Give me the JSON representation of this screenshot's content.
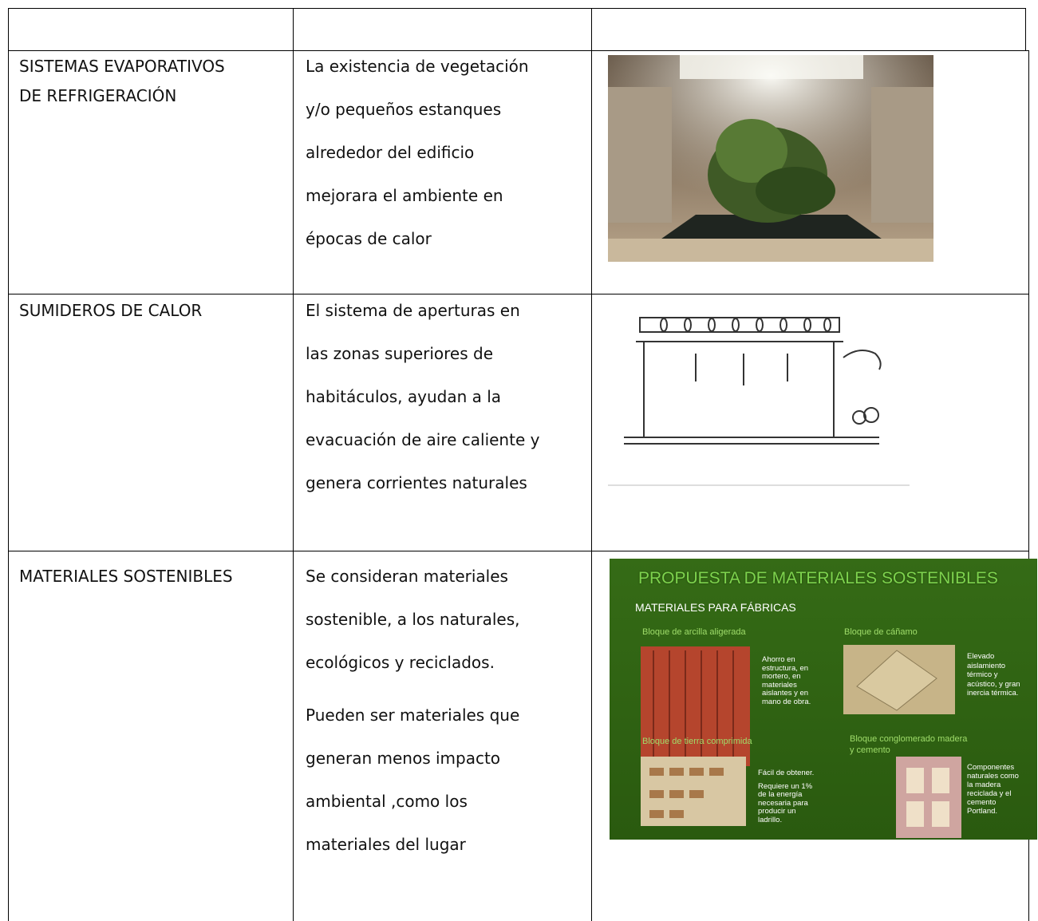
{
  "table": {
    "rows": [
      {
        "term": [
          "SISTEMAS EVAPORATIVOS",
          "DE REFRIGERACIÓN"
        ],
        "description": [
          [
            "La existencia de vegetación",
            "y/o pequeños estanques",
            "alrededor del edificio",
            "mejorara el ambiente en",
            "épocas de calor"
          ]
        ]
      },
      {
        "term": [
          "SUMIDEROS DE CALOR"
        ],
        "description": [
          [
            "El sistema de aperturas en",
            "las zonas superiores de",
            "habitáculos, ayudan a la",
            "evacuación de aire caliente y",
            "genera corrientes naturales"
          ]
        ]
      },
      {
        "term": [
          "MATERIALES SOSTENIBLES"
        ],
        "description": [
          [
            "Se consideran materiales",
            "sostenible, a los naturales,",
            "ecológicos y reciclados."
          ],
          [
            "Pueden ser materiales que",
            "generan menos impacto",
            "ambiental ,como los",
            "materiales del lugar"
          ]
        ]
      }
    ]
  },
  "figure": {
    "title": "PROPUESTA DE MATERIALES SOSTENIBLES",
    "subtitle": "MATERIALES PARA FÁBRICAS",
    "items": [
      {
        "name": [
          "Bloque de arcilla aligerada"
        ],
        "note": [
          [
            "Ahorro en",
            "estructura, en",
            "mortero, en",
            "materiales",
            "aislantes y en",
            "mano de obra."
          ]
        ]
      },
      {
        "name": [
          "Bloque de cáñamo"
        ],
        "note": [
          [
            "Elevado",
            "aislamiento",
            "térmico y",
            "acústico, y gran",
            "inercia térmica."
          ]
        ]
      },
      {
        "name": [
          "Bloque de tierra comprimida"
        ],
        "note": [
          [
            "Fácil de obtener."
          ],
          [
            "Requiere un 1%",
            "de la energía",
            "necesaria para",
            "producir un",
            "ladrillo."
          ]
        ]
      },
      {
        "name": [
          "Bloque conglomerado madera",
          "y cemento"
        ],
        "note": [
          [
            "Componentes",
            "naturales como",
            "la madera",
            "reciclada y el",
            "cemento",
            "Portland."
          ]
        ]
      }
    ]
  }
}
